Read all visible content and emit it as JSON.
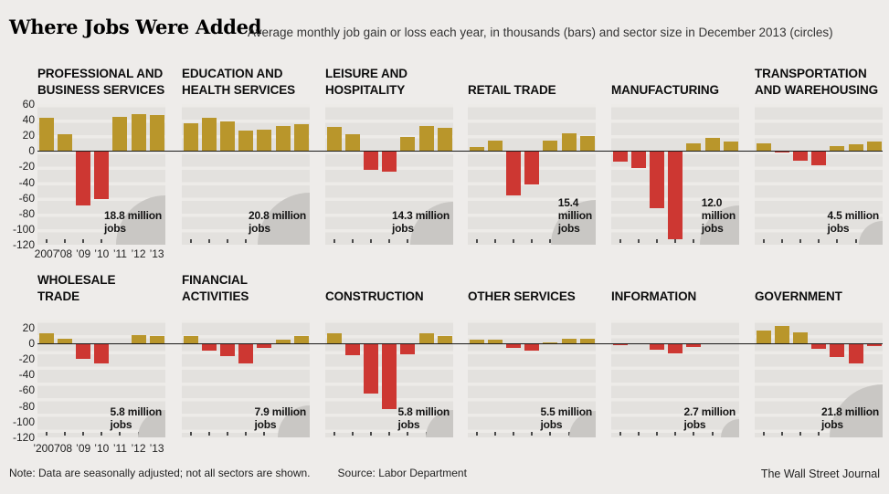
{
  "header": {
    "title": "Where Jobs Were Added",
    "subtitle": "Average monthly job gain or loss each year, in thousands (bars) and sector size in December 2013 (circles)"
  },
  "footer": {
    "note": "Note: Data are seasonally adjusted; not all sectors are shown.",
    "source": "Source: Labor Department",
    "credit": "The Wall Street Journal"
  },
  "colors": {
    "positive_bar": "#b9962b",
    "negative_bar": "#cd3732",
    "circle": "#c9c7c4",
    "panel_band": "#e3e1de",
    "grid_line": "#edebe8",
    "page_bg": "#eeecea",
    "zero_line": "#1a1a1a"
  },
  "chart_data": {
    "type": "bar",
    "title": "Where Jobs Were Added",
    "units": "thousands of jobs per month",
    "x_labels_row1": [
      "2007",
      "’08",
      "’09",
      "’10",
      "’11",
      "’12",
      "’13"
    ],
    "x_labels_row2": [
      "’2007",
      "’08",
      "’09",
      "’10",
      "’11",
      "’12",
      "’13"
    ],
    "y_ticks_row1": [
      60,
      40,
      20,
      0,
      -20,
      -40,
      -60,
      -80,
      -100,
      -120
    ],
    "y_ticks_row2": [
      20,
      0,
      -20,
      -40,
      -60,
      -80,
      -100,
      -120
    ],
    "ylim_row1": [
      -120,
      60
    ],
    "ylim_row2": [
      -120,
      30
    ],
    "panels": [
      {
        "title": "PROFESSIONAL AND\nBUSINESS SERVICES",
        "sector_size_label": "18.8 million\njobs",
        "sector_size_millions": 18.8,
        "values": [
          42,
          22,
          -70,
          -62,
          44,
          47,
          46
        ]
      },
      {
        "title": "EDUCATION AND\nHEALTH SERVICES",
        "sector_size_label": "20.8 million\njobs",
        "sector_size_millions": 20.8,
        "values": [
          36,
          42,
          38,
          26,
          27,
          32,
          34
        ]
      },
      {
        "title": "LEISURE AND\nHOSPITALITY",
        "sector_size_label": "14.3 million\njobs",
        "sector_size_millions": 14.3,
        "values": [
          31,
          21,
          -24,
          -27,
          18,
          32,
          30
        ]
      },
      {
        "title": "RETAIL TRADE",
        "sector_size_label": "15.4\nmillion\njobs",
        "sector_size_millions": 15.4,
        "values": [
          5,
          13,
          -57,
          -43,
          13,
          23,
          19
        ]
      },
      {
        "title": "MANUFACTURING",
        "sector_size_label": "12.0\nmillion\njobs",
        "sector_size_millions": 12.0,
        "values": [
          -14,
          -22,
          -73,
          -113,
          10,
          17,
          12
        ]
      },
      {
        "title": "TRANSPORTATION\nAND WAREHOUSING",
        "sector_size_label": "4.5 million\njobs",
        "sector_size_millions": 4.5,
        "values": [
          10,
          -2,
          -12,
          -18,
          6,
          9,
          12
        ]
      },
      {
        "title": "WHOLESALE\nTRADE",
        "sector_size_label": "5.8 million\njobs",
        "sector_size_millions": 5.8,
        "values": [
          12,
          6,
          -20,
          -26,
          0,
          10,
          9
        ]
      },
      {
        "title": "FINANCIAL\nACTIVITIES",
        "sector_size_label": "7.9 million\njobs",
        "sector_size_millions": 7.9,
        "values": [
          9,
          -9,
          -16,
          -26,
          -6,
          4,
          9
        ]
      },
      {
        "title": "CONSTRUCTION",
        "sector_size_label": "5.8 million\njobs",
        "sector_size_millions": 5.8,
        "values": [
          12,
          -15,
          -64,
          -84,
          -14,
          12,
          9
        ]
      },
      {
        "title": "OTHER SERVICES",
        "sector_size_label": "5.5 million\njobs",
        "sector_size_millions": 5.5,
        "values": [
          5,
          5,
          -6,
          -10,
          1,
          6,
          6
        ]
      },
      {
        "title": "INFORMATION",
        "sector_size_label": "2.7 million\njobs",
        "sector_size_millions": 2.7,
        "values": [
          -2,
          0,
          -8,
          -13,
          -5,
          0,
          -1
        ]
      },
      {
        "title": "GOVERNMENT",
        "sector_size_label": "21.8 million\njobs",
        "sector_size_millions": 21.8,
        "values": [
          16,
          22,
          14,
          -7,
          -18,
          -26,
          -4
        ]
      }
    ]
  }
}
